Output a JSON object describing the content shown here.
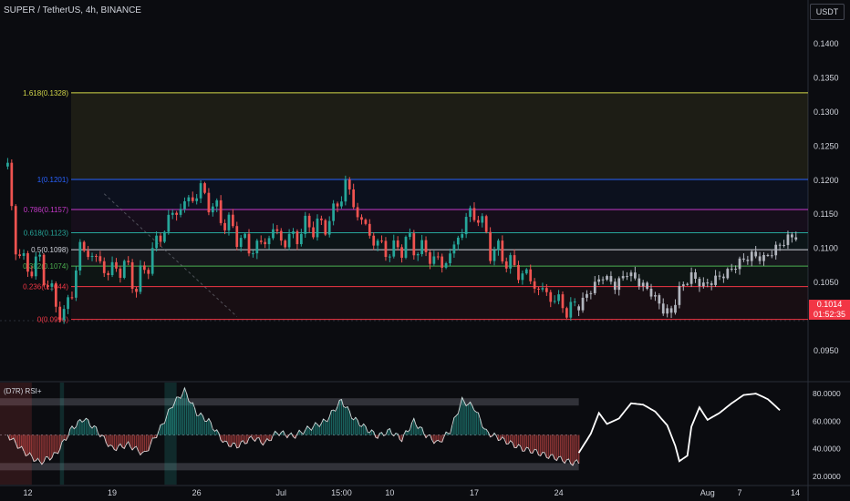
{
  "header": {
    "symbol": "SUPER / TetherUS, 4h, BINANCE",
    "currency_button": "USDT"
  },
  "colors": {
    "background": "#0b0c10",
    "up": "#26a69a",
    "down": "#ef5350",
    "neutral_candle": "#b2b5be",
    "price_tag": "#f23645"
  },
  "price_tag": {
    "price": "0.1014",
    "countdown": "01:52:35"
  },
  "rsi_panel": {
    "title": "(D7R) RSI+",
    "upper_band": 74,
    "lower_band": 27
  },
  "chart_data": [
    {
      "type": "candlestick",
      "title": "SUPER / TetherUS, 4h, BINANCE",
      "ylim": [
        0.091,
        0.144
      ],
      "y_ticks": [
        "0.1400",
        "0.1350",
        "0.1300",
        "0.1250",
        "0.1200",
        "0.1150",
        "0.1100",
        "0.1050",
        "0.1000",
        "0.0950"
      ],
      "y_tick_values": [
        0.14,
        0.135,
        0.13,
        0.125,
        0.12,
        0.115,
        0.11,
        0.105,
        0.1,
        0.095
      ],
      "x_ticks": [
        "12",
        "19",
        "26",
        "Jul",
        "15:00",
        "10",
        "17",
        "24",
        "Aug",
        "7",
        "14"
      ],
      "fib_levels": [
        {
          "label": "1.618(0.1328)",
          "value": 0.1328,
          "color": "#d4d84a"
        },
        {
          "label": "1(0.1201)",
          "value": 0.1201,
          "color": "#2962ff"
        },
        {
          "label": "0.786(0.1157)",
          "value": 0.1157,
          "color": "#c539c9"
        },
        {
          "label": "0.618(0.1123)",
          "value": 0.1123,
          "color": "#26a69a"
        },
        {
          "label": "0.5(0.1098)",
          "value": 0.1098,
          "color": "#d1d4dc"
        },
        {
          "label": "0.382(0.1074)",
          "value": 0.1074,
          "color": "#4caf50"
        },
        {
          "label": "0.236(0.1044)",
          "value": 0.1044,
          "color": "#f23645"
        },
        {
          "label": "0(0.0996)",
          "value": 0.0996,
          "color": "#f23645"
        }
      ],
      "close_path": [
        [
          1,
          0.122
        ],
        [
          3,
          0.11
        ],
        [
          6,
          0.107
        ],
        [
          9,
          0.108
        ],
        [
          12,
          0.103
        ],
        [
          15,
          0.1
        ],
        [
          17,
          0.104
        ],
        [
          19,
          0.11
        ],
        [
          22,
          0.109
        ],
        [
          26,
          0.1065
        ],
        [
          30,
          0.1075
        ],
        [
          33,
          0.1045
        ],
        [
          36,
          0.108
        ],
        [
          39,
          0.112
        ],
        [
          42,
          0.115
        ],
        [
          46,
          0.117
        ],
        [
          49,
          0.1185
        ],
        [
          52,
          0.116
        ],
        [
          55,
          0.114
        ],
        [
          58,
          0.112
        ],
        [
          61,
          0.11
        ],
        [
          64,
          0.1105
        ],
        [
          67,
          0.1125
        ],
        [
          70,
          0.111
        ],
        [
          73,
          0.112
        ],
        [
          76,
          0.1135
        ],
        [
          79,
          0.113
        ],
        [
          82,
          0.115
        ],
        [
          85,
          0.1195
        ],
        [
          88,
          0.115
        ],
        [
          91,
          0.112
        ],
        [
          94,
          0.11
        ],
        [
          97,
          0.1095
        ],
        [
          100,
          0.111
        ],
        [
          103,
          0.11
        ],
        [
          106,
          0.109
        ],
        [
          109,
          0.1075
        ],
        [
          112,
          0.11
        ],
        [
          115,
          0.1145
        ],
        [
          118,
          0.115
        ],
        [
          121,
          0.11
        ],
        [
          124,
          0.109
        ],
        [
          127,
          0.107
        ],
        [
          130,
          0.106
        ],
        [
          133,
          0.104
        ],
        [
          136,
          0.103
        ],
        [
          139,
          0.1015
        ],
        [
          142,
          0.101
        ]
      ],
      "projection_path": [
        [
          143,
          0.1015
        ],
        [
          146,
          0.104
        ],
        [
          149,
          0.106
        ],
        [
          152,
          0.1045
        ],
        [
          155,
          0.1065
        ],
        [
          158,
          0.105
        ],
        [
          161,
          0.1035
        ],
        [
          164,
          0.101
        ],
        [
          166,
          0.1005
        ],
        [
          168,
          0.104
        ],
        [
          171,
          0.106
        ],
        [
          174,
          0.1045
        ],
        [
          177,
          0.1055
        ],
        [
          180,
          0.1065
        ],
        [
          183,
          0.108
        ],
        [
          186,
          0.109
        ],
        [
          189,
          0.1085
        ],
        [
          192,
          0.11
        ],
        [
          195,
          0.1115
        ],
        [
          197,
          0.1118
        ]
      ]
    },
    {
      "type": "line",
      "title": "(D7R) RSI+",
      "ylim": [
        14,
        88
      ],
      "y_ticks": [
        "80.0000",
        "60.0000",
        "40.0000",
        "20.0000"
      ],
      "y_tick_values": [
        80,
        60,
        40,
        20
      ],
      "rsi_path": [
        [
          1,
          50
        ],
        [
          5,
          38
        ],
        [
          9,
          30
        ],
        [
          13,
          36
        ],
        [
          17,
          55
        ],
        [
          20,
          62
        ],
        [
          23,
          54
        ],
        [
          27,
          40
        ],
        [
          31,
          43
        ],
        [
          35,
          36
        ],
        [
          39,
          55
        ],
        [
          42,
          72
        ],
        [
          45,
          82
        ],
        [
          48,
          66
        ],
        [
          51,
          60
        ],
        [
          55,
          44
        ],
        [
          58,
          42
        ],
        [
          62,
          48
        ],
        [
          65,
          44
        ],
        [
          68,
          52
        ],
        [
          72,
          49
        ],
        [
          76,
          55
        ],
        [
          80,
          60
        ],
        [
          84,
          75
        ],
        [
          87,
          62
        ],
        [
          90,
          55
        ],
        [
          93,
          49
        ],
        [
          96,
          53
        ],
        [
          99,
          47
        ],
        [
          102,
          60
        ],
        [
          105,
          50
        ],
        [
          108,
          44
        ],
        [
          111,
          53
        ],
        [
          114,
          75
        ],
        [
          117,
          70
        ],
        [
          120,
          52
        ],
        [
          123,
          48
        ],
        [
          126,
          44
        ],
        [
          129,
          40
        ],
        [
          132,
          38
        ],
        [
          135,
          35
        ],
        [
          138,
          33
        ],
        [
          141,
          30
        ],
        [
          143,
          30
        ]
      ],
      "projection_path": [
        [
          143,
          37
        ],
        [
          146,
          51
        ],
        [
          148,
          66
        ],
        [
          150,
          58
        ],
        [
          153,
          62
        ],
        [
          156,
          73
        ],
        [
          159,
          72
        ],
        [
          162,
          67
        ],
        [
          165,
          57
        ],
        [
          167,
          42
        ],
        [
          168,
          31
        ],
        [
          170,
          35
        ],
        [
          171,
          56
        ],
        [
          173,
          70
        ],
        [
          175,
          61
        ],
        [
          178,
          66
        ],
        [
          181,
          73
        ],
        [
          184,
          79
        ],
        [
          187,
          80
        ],
        [
          190,
          76
        ],
        [
          193,
          68
        ]
      ]
    }
  ]
}
